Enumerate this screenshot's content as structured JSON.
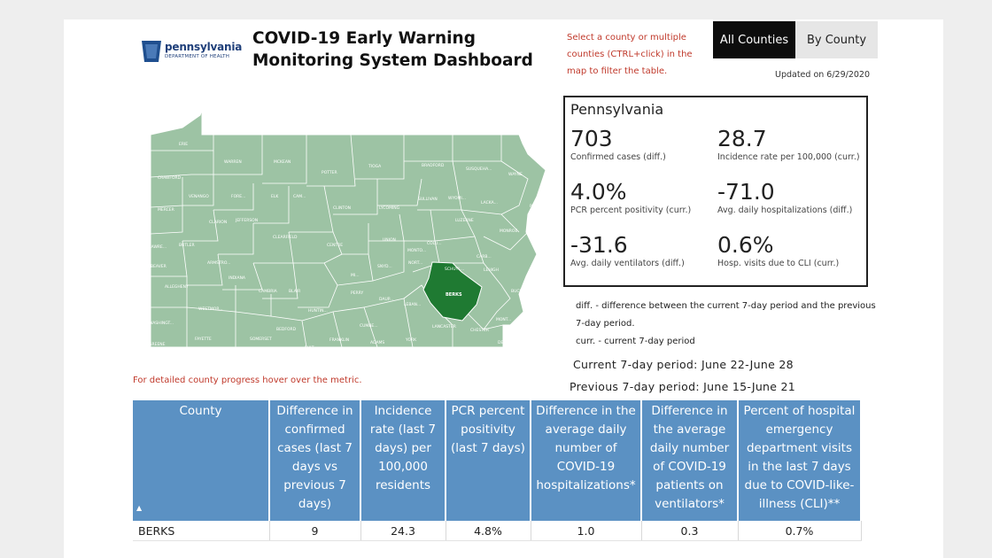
{
  "header": {
    "logo_name": "pennsylvania",
    "logo_sub": "DEPARTMENT OF HEALTH",
    "title": "COVID-19 Early Warning Monitoring System Dashboard",
    "hint": "Select a county or multiple counties (CTRL+click) in the map to filter the table.",
    "buttons": {
      "all_counties": "All Counties",
      "by_county": "By County"
    },
    "updated": "Updated on 6/29/2020"
  },
  "state_summary": {
    "title": "Pennsylvania",
    "metrics": [
      {
        "value": "703",
        "label": "Confirmed cases (diff.)"
      },
      {
        "value": "28.7",
        "label": "Incidence rate per 100,000 (curr.)"
      },
      {
        "value": "4.0%",
        "label": "PCR percent positivity (curr.)"
      },
      {
        "value": "-71.0",
        "label": "Avg. daily hospitalizations (diff.)"
      },
      {
        "value": "-31.6",
        "label": "Avg. daily ventilators (diff.)"
      },
      {
        "value": "0.6%",
        "label": "Hosp. visits due to CLI (curr.)"
      }
    ]
  },
  "legend": {
    "diff_line1": "diff. - difference between the current 7-day period and the previous",
    "diff_line2": "7-day period.",
    "curr": "curr. - current 7-day period",
    "current_period": "Current 7-day period: June 22-June 28",
    "previous_period": "Previous 7-day period: June 15-June 21"
  },
  "map": {
    "hover_note": "For detailed county progress hover over the metric.",
    "colors": {
      "county": "#9dc3a4",
      "selected": "#1f7a32",
      "border": "#ffffff"
    },
    "selected_county": "BERKS",
    "county_labels": [
      "ERIE",
      "WARREN",
      "MCKEAN",
      "POTTER",
      "TIOGA",
      "BRADFORD",
      "SUSQUEHA...",
      "WAYNE",
      "CRAWFORD",
      "VENANGO",
      "FORE...",
      "ELK",
      "CAM...",
      "WYOMI...",
      "LACKA...",
      "PIKE",
      "MERCER",
      "CLARION",
      "JEFFERSON",
      "CLINTON",
      "LYCOMING",
      "SULLIVAN",
      "LUZERNE",
      "MONROE",
      "LAWRE...",
      "BUTLER",
      "CLEARFIELD",
      "CENTRE",
      "UNION",
      "COLU...",
      "CARB...",
      "BEAVER",
      "ARMSTRO...",
      "SCHUYL...",
      "LEHIGH",
      "NORT...",
      "ALLEGHENY",
      "INDIANA",
      "CAMBRIA",
      "BLAIR",
      "PERRY",
      "DAUP...",
      "LEBAN...",
      "BUCKS",
      "WESTMOR...",
      "HUNTIN...",
      "CUMBE...",
      "LANCASTER",
      "CHESTER",
      "MONT...",
      "WASHINGT...",
      "BEDFORD",
      "FRANKLIN",
      "ADAMS",
      "YORK",
      "DEL...",
      "GREENE",
      "FAYETTE",
      "SOMERSET",
      "FULT...",
      "MI...",
      "SNYD...",
      "MONTO..."
    ]
  },
  "table": {
    "headers": [
      "County",
      "Difference in confirmed cases (last 7 days vs previous 7 days)",
      "Incidence rate (last 7 days) per 100,000 residents",
      "PCR percent positivity (last 7 days)",
      "Difference in the average daily number of COVID-19 hospitalizations*",
      "Difference in the average daily number of COVID-19 patients on ventilators*",
      "Percent of hospital emergency department visits in the last 7 days due to COVID-like-illness (CLI)**"
    ],
    "rows": [
      [
        "BERKS",
        "9",
        "24.3",
        "4.8%",
        "1.0",
        "0.3",
        "0.7%"
      ]
    ]
  }
}
